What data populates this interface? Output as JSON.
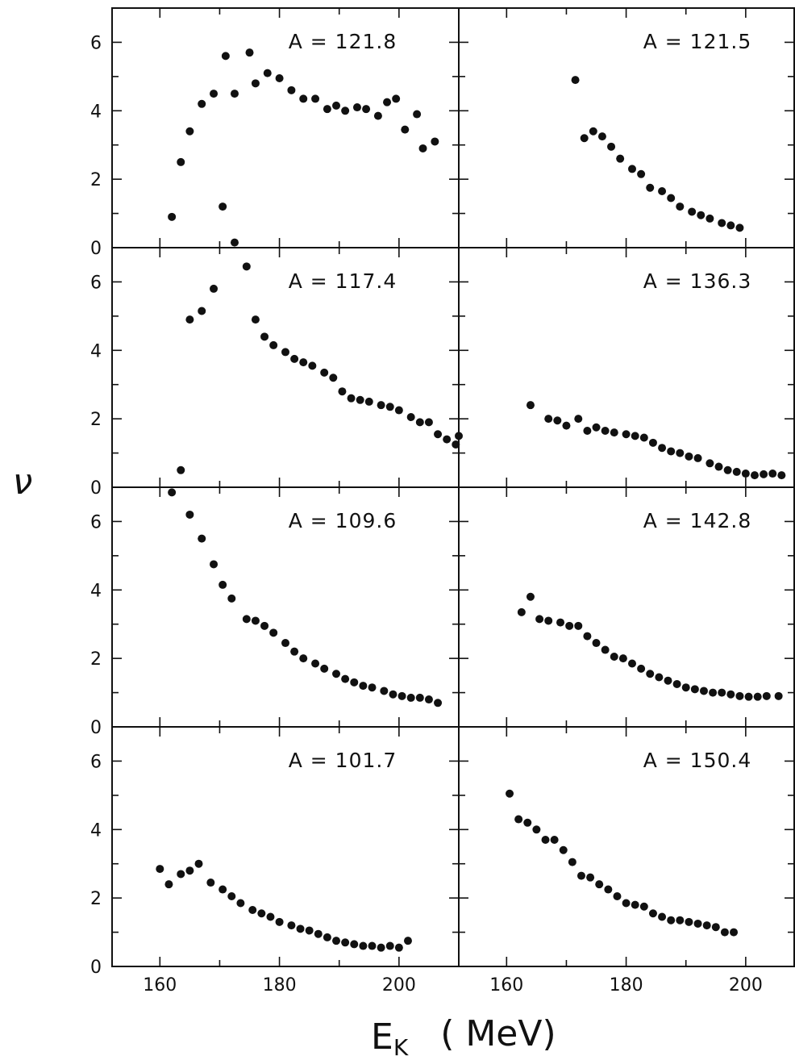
{
  "chart_data": {
    "type": "scatter",
    "layout": "grid of 4 rows x 2 columns, shared axes",
    "ylabel": "ν",
    "xlabel_main": "E",
    "xlabel_sub": "K",
    "xlabel_unit": "( MeV)",
    "xlim": [
      152,
      210
    ],
    "ylim": [
      0,
      7
    ],
    "x_ticks": [
      160,
      180,
      200
    ],
    "y_ticks": [
      0,
      2,
      4,
      6
    ],
    "grid": false,
    "panels": [
      {
        "label": "A = 121.8",
        "row": 0,
        "col": 0,
        "points": [
          [
            162,
            0.9
          ],
          [
            163.5,
            2.5
          ],
          [
            165,
            3.4
          ],
          [
            167,
            4.2
          ],
          [
            169,
            4.5
          ],
          [
            170.5,
            1.2
          ],
          [
            171,
            5.6
          ],
          [
            172.5,
            0.15
          ],
          [
            172.5,
            4.5
          ],
          [
            175,
            5.7
          ],
          [
            176,
            4.8
          ],
          [
            178,
            5.1
          ],
          [
            180,
            4.95
          ],
          [
            182,
            4.6
          ],
          [
            184,
            4.35
          ],
          [
            186,
            4.35
          ],
          [
            188,
            4.05
          ],
          [
            189.5,
            4.15
          ],
          [
            191,
            4.0
          ],
          [
            193,
            4.1
          ],
          [
            194.5,
            4.05
          ],
          [
            196.5,
            3.85
          ],
          [
            198,
            4.25
          ],
          [
            199.5,
            4.35
          ],
          [
            201,
            3.45
          ],
          [
            203,
            3.9
          ],
          [
            204,
            2.9
          ],
          [
            206,
            3.1
          ]
        ]
      },
      {
        "label": "A = 121.5",
        "row": 0,
        "col": 1,
        "points": [
          [
            171.5,
            4.9
          ],
          [
            173,
            3.2
          ],
          [
            174.5,
            3.4
          ],
          [
            176,
            3.25
          ],
          [
            177.5,
            2.95
          ],
          [
            179,
            2.6
          ],
          [
            181,
            2.3
          ],
          [
            182.5,
            2.15
          ],
          [
            184,
            1.75
          ],
          [
            186,
            1.65
          ],
          [
            187.5,
            1.45
          ],
          [
            189,
            1.2
          ],
          [
            191,
            1.05
          ],
          [
            192.5,
            0.95
          ],
          [
            194,
            0.85
          ],
          [
            196,
            0.72
          ],
          [
            197.5,
            0.65
          ],
          [
            199,
            0.58
          ]
        ]
      },
      {
        "label": "A = 117.4",
        "row": 1,
        "col": 0,
        "points": [
          [
            163.5,
            0.5
          ],
          [
            165,
            4.9
          ],
          [
            167,
            5.15
          ],
          [
            169,
            5.8
          ],
          [
            174.5,
            6.45
          ],
          [
            176,
            4.9
          ],
          [
            177.5,
            4.4
          ],
          [
            179,
            4.15
          ],
          [
            181,
            3.95
          ],
          [
            182.5,
            3.75
          ],
          [
            184,
            3.65
          ],
          [
            185.5,
            3.55
          ],
          [
            187.5,
            3.35
          ],
          [
            189,
            3.2
          ],
          [
            190.5,
            2.8
          ],
          [
            192,
            2.6
          ],
          [
            193.5,
            2.55
          ],
          [
            195,
            2.5
          ],
          [
            197,
            2.4
          ],
          [
            198.5,
            2.35
          ],
          [
            200,
            2.25
          ],
          [
            202,
            2.05
          ],
          [
            203.5,
            1.9
          ],
          [
            205,
            1.9
          ],
          [
            206.5,
            1.55
          ],
          [
            208,
            1.4
          ],
          [
            209.5,
            1.25
          ],
          [
            210,
            1.5
          ]
        ]
      },
      {
        "label": "A = 136.3",
        "row": 1,
        "col": 1,
        "points": [
          [
            164,
            2.4
          ],
          [
            167,
            2.0
          ],
          [
            168.5,
            1.95
          ],
          [
            170,
            1.8
          ],
          [
            172,
            2.0
          ],
          [
            173.5,
            1.65
          ],
          [
            175,
            1.75
          ],
          [
            176.5,
            1.65
          ],
          [
            178,
            1.6
          ],
          [
            180,
            1.55
          ],
          [
            181.5,
            1.5
          ],
          [
            183,
            1.45
          ],
          [
            184.5,
            1.3
          ],
          [
            186,
            1.15
          ],
          [
            187.5,
            1.05
          ],
          [
            189,
            1.0
          ],
          [
            190.5,
            0.9
          ],
          [
            192,
            0.85
          ],
          [
            194,
            0.7
          ],
          [
            195.5,
            0.6
          ],
          [
            197,
            0.5
          ],
          [
            198.5,
            0.45
          ],
          [
            200,
            0.4
          ],
          [
            201.5,
            0.35
          ],
          [
            203,
            0.38
          ],
          [
            204.5,
            0.4
          ],
          [
            206,
            0.35
          ]
        ]
      },
      {
        "label": "A = 109.6",
        "row": 2,
        "col": 0,
        "points": [
          [
            162,
            6.85
          ],
          [
            165,
            6.2
          ],
          [
            167,
            5.5
          ],
          [
            169,
            4.75
          ],
          [
            170.5,
            4.15
          ],
          [
            172,
            3.75
          ],
          [
            174.5,
            3.15
          ],
          [
            176,
            3.1
          ],
          [
            177.5,
            2.95
          ],
          [
            179,
            2.75
          ],
          [
            181,
            2.45
          ],
          [
            182.5,
            2.2
          ],
          [
            184,
            2.0
          ],
          [
            186,
            1.85
          ],
          [
            187.5,
            1.7
          ],
          [
            189.5,
            1.55
          ],
          [
            191,
            1.4
          ],
          [
            192.5,
            1.3
          ],
          [
            194,
            1.2
          ],
          [
            195.5,
            1.15
          ],
          [
            197.5,
            1.05
          ],
          [
            199,
            0.95
          ],
          [
            200.5,
            0.9
          ],
          [
            202,
            0.85
          ],
          [
            203.5,
            0.85
          ],
          [
            205,
            0.8
          ],
          [
            206.5,
            0.7
          ]
        ]
      },
      {
        "label": "A = 142.8",
        "row": 2,
        "col": 1,
        "points": [
          [
            162.5,
            3.35
          ],
          [
            164,
            3.8
          ],
          [
            165.5,
            3.15
          ],
          [
            167,
            3.1
          ],
          [
            169,
            3.05
          ],
          [
            170.5,
            2.95
          ],
          [
            172,
            2.95
          ],
          [
            173.5,
            2.65
          ],
          [
            175,
            2.45
          ],
          [
            176.5,
            2.25
          ],
          [
            178,
            2.05
          ],
          [
            179.5,
            2.0
          ],
          [
            181,
            1.85
          ],
          [
            182.5,
            1.7
          ],
          [
            184,
            1.55
          ],
          [
            185.5,
            1.45
          ],
          [
            187,
            1.35
          ],
          [
            188.5,
            1.25
          ],
          [
            190,
            1.15
          ],
          [
            191.5,
            1.1
          ],
          [
            193,
            1.05
          ],
          [
            194.5,
            1.0
          ],
          [
            196,
            1.0
          ],
          [
            197.5,
            0.95
          ],
          [
            199,
            0.9
          ],
          [
            200.5,
            0.88
          ],
          [
            202,
            0.88
          ],
          [
            203.5,
            0.9
          ],
          [
            205.5,
            0.9
          ]
        ]
      },
      {
        "label": "A = 101.7",
        "row": 3,
        "col": 0,
        "points": [
          [
            160,
            2.85
          ],
          [
            161.5,
            2.4
          ],
          [
            163.5,
            2.7
          ],
          [
            165,
            2.8
          ],
          [
            166.5,
            3.0
          ],
          [
            168.5,
            2.45
          ],
          [
            170.5,
            2.25
          ],
          [
            172,
            2.05
          ],
          [
            173.5,
            1.85
          ],
          [
            175.5,
            1.65
          ],
          [
            177,
            1.55
          ],
          [
            178.5,
            1.45
          ],
          [
            180,
            1.3
          ],
          [
            182,
            1.2
          ],
          [
            183.5,
            1.1
          ],
          [
            185,
            1.05
          ],
          [
            186.5,
            0.95
          ],
          [
            188,
            0.85
          ],
          [
            189.5,
            0.75
          ],
          [
            191,
            0.7
          ],
          [
            192.5,
            0.65
          ],
          [
            194,
            0.6
          ],
          [
            195.5,
            0.6
          ],
          [
            197,
            0.55
          ],
          [
            198.5,
            0.6
          ],
          [
            200,
            0.55
          ],
          [
            201.5,
            0.75
          ]
        ]
      },
      {
        "label": "A = 150.4",
        "row": 3,
        "col": 1,
        "points": [
          [
            160.5,
            5.05
          ],
          [
            162,
            4.3
          ],
          [
            163.5,
            4.2
          ],
          [
            165,
            4.0
          ],
          [
            166.5,
            3.7
          ],
          [
            168,
            3.7
          ],
          [
            169.5,
            3.4
          ],
          [
            171,
            3.05
          ],
          [
            172.5,
            2.65
          ],
          [
            174,
            2.6
          ],
          [
            175.5,
            2.4
          ],
          [
            177,
            2.25
          ],
          [
            178.5,
            2.05
          ],
          [
            180,
            1.85
          ],
          [
            181.5,
            1.8
          ],
          [
            183,
            1.75
          ],
          [
            184.5,
            1.55
          ],
          [
            186,
            1.45
          ],
          [
            187.5,
            1.35
          ],
          [
            189,
            1.35
          ],
          [
            190.5,
            1.3
          ],
          [
            192,
            1.25
          ],
          [
            193.5,
            1.2
          ],
          [
            195,
            1.15
          ],
          [
            196.5,
            1.0
          ],
          [
            198,
            1.0
          ]
        ]
      }
    ]
  }
}
